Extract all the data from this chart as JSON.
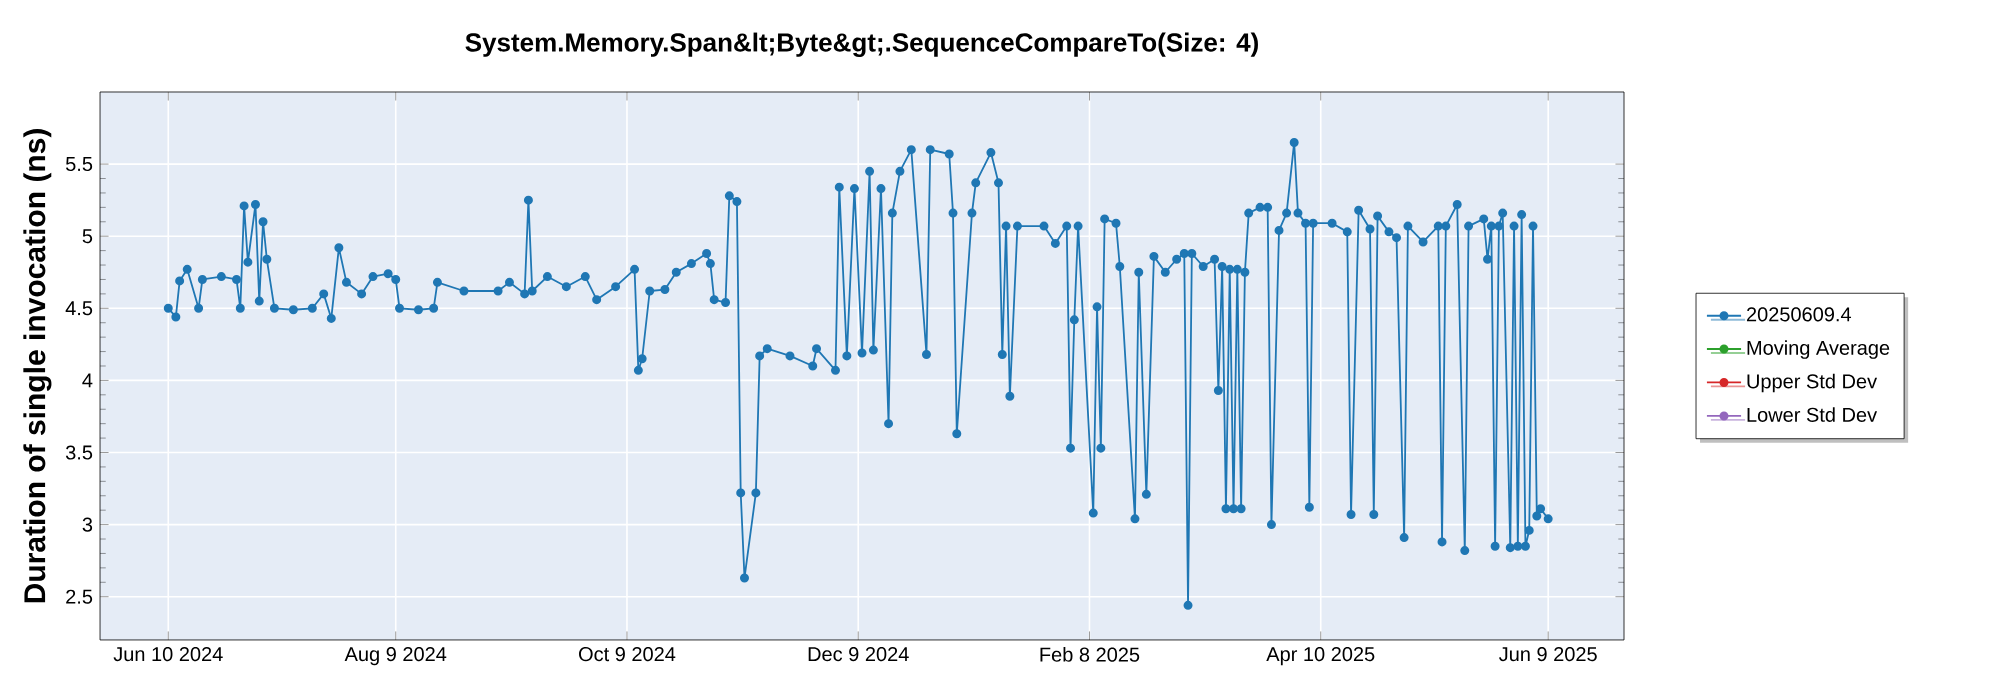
{
  "chart_data": {
    "type": "line",
    "title": "System.Memory.Span&lt;Byte&gt;.SequenceCompareTo(Size: 4)",
    "ylabel": "Duration of single invocation (ns)",
    "xlim": [
      "2024-05-23",
      "2025-06-29"
    ],
    "xticks": [
      {
        "value": "2024-06-10",
        "label": "Jun 10 2024"
      },
      {
        "value": "2024-08-09",
        "label": "Aug 9 2024"
      },
      {
        "value": "2024-10-09",
        "label": "Oct 9 2024"
      },
      {
        "value": "2024-12-09",
        "label": "Dec 9 2024"
      },
      {
        "value": "2025-02-08",
        "label": "Feb 8 2025"
      },
      {
        "value": "2025-04-10",
        "label": "Apr 10 2025"
      },
      {
        "value": "2025-06-09",
        "label": "Jun 9 2025"
      }
    ],
    "ylim": [
      2.2,
      6.0
    ],
    "yticks": [
      2.5,
      3,
      3.5,
      4,
      4.5,
      5,
      5.5
    ],
    "grid": true,
    "legend": "right",
    "marker": "circle",
    "line_style": "solid",
    "series": [
      {
        "name": "20250609.4",
        "color": "#1f77b4",
        "x": [
          "2024-06-10",
          "2024-06-12",
          "2024-06-13",
          "2024-06-15",
          "2024-06-18",
          "2024-06-19",
          "2024-06-24",
          "2024-06-28",
          "2024-06-29",
          "2024-06-30",
          "2024-07-01",
          "2024-07-03",
          "2024-07-04",
          "2024-07-05",
          "2024-07-06",
          "2024-07-08",
          "2024-07-13",
          "2024-07-18",
          "2024-07-21",
          "2024-07-23",
          "2024-07-25",
          "2024-07-27",
          "2024-07-31",
          "2024-08-03",
          "2024-08-07",
          "2024-08-09",
          "2024-08-10",
          "2024-08-15",
          "2024-08-19",
          "2024-08-20",
          "2024-08-27",
          "2024-09-05",
          "2024-09-08",
          "2024-09-12",
          "2024-09-13",
          "2024-09-14",
          "2024-09-18",
          "2024-09-23",
          "2024-09-28",
          "2024-10-01",
          "2024-10-06",
          "2024-10-11",
          "2024-10-12",
          "2024-10-13",
          "2024-10-15",
          "2024-10-19",
          "2024-10-22",
          "2024-10-26",
          "2024-10-30",
          "2024-10-31",
          "2024-11-01",
          "2024-11-04",
          "2024-11-05",
          "2024-11-07",
          "2024-11-08",
          "2024-11-09",
          "2024-11-12",
          "2024-11-13",
          "2024-11-15",
          "2024-11-21",
          "2024-11-27",
          "2024-11-28",
          "2024-12-03",
          "2024-12-04",
          "2024-12-06",
          "2024-12-08",
          "2024-12-10",
          "2024-12-12",
          "2024-12-13",
          "2024-12-15",
          "2024-12-17",
          "2024-12-18",
          "2024-12-20",
          "2024-12-23",
          "2024-12-27",
          "2024-12-28",
          "2025-01-02",
          "2025-01-03",
          "2025-01-04",
          "2025-01-08",
          "2025-01-09",
          "2025-01-13",
          "2025-01-15",
          "2025-01-16",
          "2025-01-17",
          "2025-01-18",
          "2025-01-20",
          "2025-01-27",
          "2025-01-30",
          "2025-02-02",
          "2025-02-03",
          "2025-02-04",
          "2025-02-05",
          "2025-02-09",
          "2025-02-10",
          "2025-02-11",
          "2025-02-12",
          "2025-02-15",
          "2025-02-16",
          "2025-02-20",
          "2025-02-21",
          "2025-02-23",
          "2025-02-25",
          "2025-02-28",
          "2025-03-03",
          "2025-03-05",
          "2025-03-06",
          "2025-03-07",
          "2025-03-10",
          "2025-03-13",
          "2025-03-14",
          "2025-03-15",
          "2025-03-16",
          "2025-03-17",
          "2025-03-18",
          "2025-03-19",
          "2025-03-20",
          "2025-03-21",
          "2025-03-22",
          "2025-03-25",
          "2025-03-27",
          "2025-03-28",
          "2025-03-30",
          "2025-04-01",
          "2025-04-03",
          "2025-04-04",
          "2025-04-06",
          "2025-04-07",
          "2025-04-08",
          "2025-04-13",
          "2025-04-17",
          "2025-04-18",
          "2025-04-20",
          "2025-04-23",
          "2025-04-24",
          "2025-04-25",
          "2025-04-28",
          "2025-04-30",
          "2025-05-02",
          "2025-05-03",
          "2025-05-07",
          "2025-05-11",
          "2025-05-12",
          "2025-05-13",
          "2025-05-16",
          "2025-05-18",
          "2025-05-19",
          "2025-05-23",
          "2025-05-24",
          "2025-05-25",
          "2025-05-26",
          "2025-05-27",
          "2025-05-28",
          "2025-05-30",
          "2025-05-31",
          "2025-06-01",
          "2025-06-02",
          "2025-06-03",
          "2025-06-04",
          "2025-06-05",
          "2025-06-06",
          "2025-06-07",
          "2025-06-09"
        ],
        "values": [
          4.5,
          4.44,
          4.69,
          4.77,
          4.5,
          4.7,
          4.72,
          4.7,
          4.5,
          5.21,
          4.82,
          5.22,
          4.55,
          5.1,
          4.84,
          4.5,
          4.49,
          4.5,
          4.6,
          4.43,
          4.92,
          4.68,
          4.6,
          4.72,
          4.74,
          4.7,
          4.5,
          4.49,
          4.5,
          4.68,
          4.62,
          4.62,
          4.68,
          4.6,
          5.25,
          4.62,
          4.72,
          4.65,
          4.72,
          4.56,
          4.65,
          4.77,
          4.07,
          4.15,
          4.62,
          4.63,
          4.75,
          4.81,
          4.88,
          4.81,
          4.56,
          4.54,
          5.28,
          5.24,
          3.22,
          2.63,
          3.22,
          4.17,
          4.22,
          4.17,
          4.1,
          4.22,
          4.07,
          5.34,
          4.17,
          5.33,
          4.19,
          5.45,
          4.21,
          5.33,
          3.7,
          5.16,
          5.45,
          5.6,
          4.18,
          5.6,
          5.57,
          5.16,
          3.63,
          5.16,
          5.37,
          5.58,
          5.37,
          4.18,
          5.07,
          3.89,
          5.07,
          5.07,
          4.95,
          5.07,
          3.53,
          4.42,
          5.07,
          3.08,
          4.51,
          3.53,
          5.12,
          5.09,
          4.79,
          3.04,
          4.75,
          3.21,
          4.86,
          4.75,
          4.84,
          4.88,
          2.44,
          4.88,
          4.79,
          4.84,
          3.93,
          4.79,
          3.11,
          4.77,
          3.11,
          4.77,
          3.11,
          4.75,
          5.16,
          5.2,
          5.2,
          3.0,
          5.04,
          5.16,
          5.65,
          5.16,
          5.09,
          3.12,
          5.09,
          5.09,
          5.03,
          3.07,
          5.18,
          5.05,
          3.07,
          5.14,
          5.03,
          4.99,
          2.91,
          5.07,
          4.96,
          5.07,
          2.88,
          5.07,
          5.22,
          2.82,
          5.07,
          5.12,
          4.84,
          5.07,
          2.85,
          5.07,
          5.16,
          2.84,
          5.07,
          2.85,
          5.15,
          2.85,
          2.96,
          5.07,
          3.06,
          3.11,
          3.04
        ]
      },
      {
        "name": "Moving Average",
        "color": "#2ca02c"
      },
      {
        "name": "Upper Std Dev",
        "color": "#d62728"
      },
      {
        "name": "Lower Std Dev",
        "color": "#9467bd"
      }
    ]
  }
}
